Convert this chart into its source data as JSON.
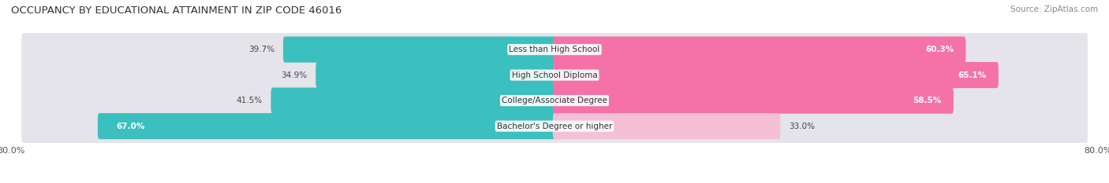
{
  "title": "OCCUPANCY BY EDUCATIONAL ATTAINMENT IN ZIP CODE 46016",
  "source": "Source: ZipAtlas.com",
  "categories": [
    "Less than High School",
    "High School Diploma",
    "College/Associate Degree",
    "Bachelor's Degree or higher"
  ],
  "owner_pct": [
    39.7,
    34.9,
    41.5,
    67.0
  ],
  "renter_pct": [
    60.3,
    65.1,
    58.5,
    33.0
  ],
  "owner_color": "#3bbfbf",
  "renter_color_strong": "#f472a8",
  "renter_color_light": "#f5c0d4",
  "bar_bg": "#e4e4ea",
  "xlim_left": -80.0,
  "xlim_right": 80.0,
  "title_fontsize": 9.5,
  "source_fontsize": 7.5,
  "label_fontsize": 7.5,
  "tick_fontsize": 8,
  "legend_fontsize": 8,
  "fig_width": 14.06,
  "fig_height": 2.33,
  "fig_dpi": 100
}
